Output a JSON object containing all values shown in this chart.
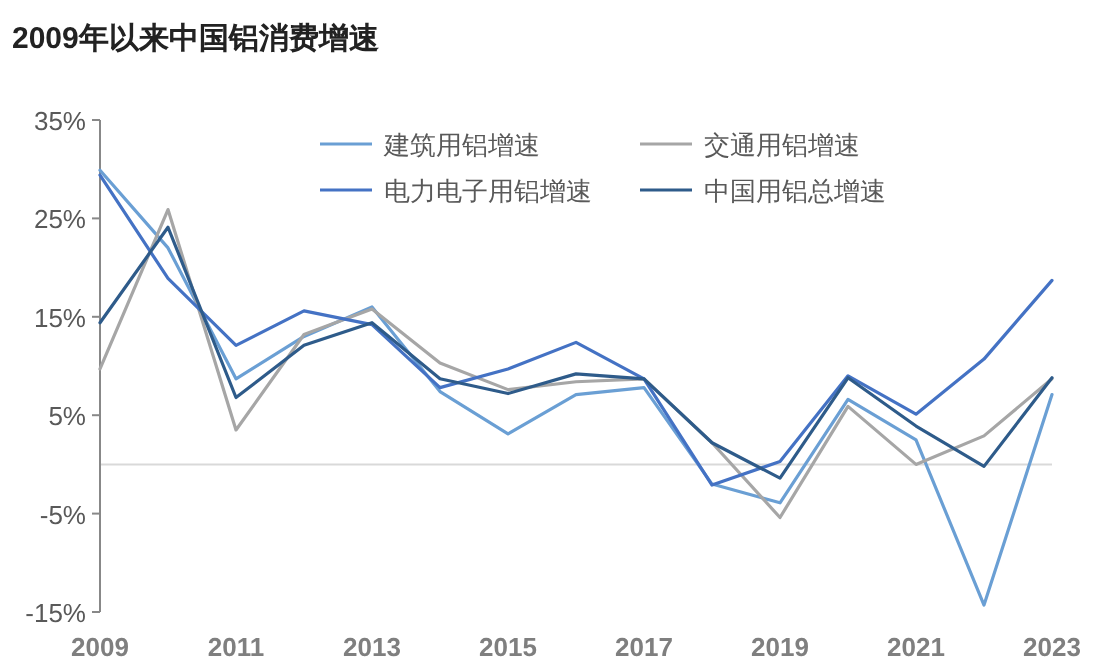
{
  "chart_data": {
    "type": "line",
    "title": "2009年以来中国铝消费增速",
    "x": [
      2009,
      2010,
      2011,
      2012,
      2013,
      2014,
      2015,
      2016,
      2017,
      2018,
      2019,
      2020,
      2021,
      2022,
      2023
    ],
    "series": [
      {
        "name": "建筑用铝增速",
        "color": "#6a9fd4",
        "values": [
          29.9,
          22,
          8.7,
          13,
          16,
          7.4,
          3.1,
          7.1,
          7.8,
          -2,
          -3.9,
          6.6,
          2.5,
          -14.3,
          7.1
        ]
      },
      {
        "name": "交通用铝增速",
        "color": "#a6a6a6",
        "values": [
          9.7,
          25.9,
          3.5,
          13.2,
          15.8,
          10.3,
          7.6,
          8.4,
          8.7,
          2.2,
          -5.4,
          5.9,
          0,
          2.9,
          8.7
        ]
      },
      {
        "name": "电力电子用铝增速",
        "color": "#4472c4",
        "values": [
          29.4,
          18.9,
          12.1,
          15.6,
          14.2,
          7.8,
          9.7,
          12.4,
          8.7,
          -2.1,
          0.3,
          9,
          5.1,
          10.7,
          18.7
        ]
      },
      {
        "name": "中国用铝总增速",
        "color": "#2e5b8a",
        "values": [
          14.4,
          24.1,
          6.8,
          12.1,
          14.4,
          8.7,
          7.2,
          9.2,
          8.7,
          2.2,
          -1.4,
          8.8,
          3.9,
          -0.2,
          8.8
        ]
      }
    ],
    "xlim": [
      2009,
      2023
    ],
    "xticks": [
      2009,
      2011,
      2013,
      2015,
      2017,
      2019,
      2021,
      2023
    ],
    "ylim": [
      -15,
      35
    ],
    "yticks": [
      {
        "value": 35,
        "label": "35%"
      },
      {
        "value": 25,
        "label": "25%"
      },
      {
        "value": 15,
        "label": "15%"
      },
      {
        "value": 5,
        "label": "5%"
      },
      {
        "value": -5,
        "label": "-5%"
      },
      {
        "value": -15,
        "label": "-15%"
      }
    ],
    "grid": false,
    "legend": "top right",
    "marker": "none",
    "line_style": "solid"
  }
}
